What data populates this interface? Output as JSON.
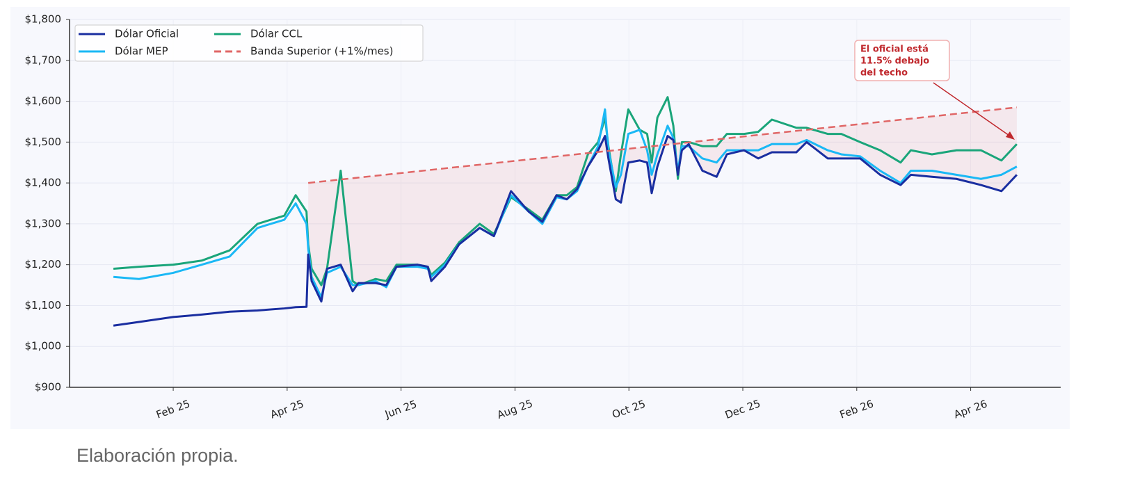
{
  "chart_data": {
    "type": "line",
    "x": [
      0.95,
      1.4,
      2.0,
      2.5,
      2.99,
      3.48,
      3.95,
      4.15,
      4.34,
      4.37,
      4.43,
      4.6,
      4.7,
      4.94,
      5.15,
      5.25,
      5.55,
      5.74,
      5.92,
      6.29,
      6.47,
      6.53,
      6.77,
      7.02,
      7.38,
      7.63,
      7.93,
      8.24,
      8.48,
      8.73,
      8.91,
      9.09,
      9.28,
      9.46,
      9.58,
      9.64,
      9.77,
      9.86,
      9.99,
      10.19,
      10.32,
      10.4,
      10.5,
      10.68,
      10.78,
      10.86,
      10.93,
      11.05,
      11.29,
      11.54,
      11.72,
      12.02,
      12.27,
      12.51,
      12.94,
      13.12,
      13.49,
      13.73,
      14.06,
      14.41,
      14.77,
      14.95,
      15.32,
      15.75,
      16.18,
      16.54,
      16.81
    ],
    "series": [
      {
        "name": "Dólar Oficial",
        "color": "#1a2ea0",
        "values": [
          1051,
          1060,
          1072,
          1078,
          1085,
          1088,
          1093,
          1096,
          1097,
          1225,
          1160,
          1110,
          1190,
          1200,
          1135,
          1155,
          1155,
          1150,
          1195,
          1200,
          1195,
          1160,
          1195,
          1250,
          1290,
          1270,
          1380,
          1330,
          1305,
          1370,
          1360,
          1385,
          1440,
          1480,
          1515,
          1460,
          1360,
          1352,
          1450,
          1455,
          1450,
          1375,
          1440,
          1515,
          1505,
          1420,
          1480,
          1495,
          1430,
          1415,
          1470,
          1480,
          1460,
          1475,
          1475,
          1500,
          1460,
          1460,
          1460,
          1420,
          1395,
          1420,
          1415,
          1410,
          1395,
          1380,
          1420
        ]
      },
      {
        "name": "Dólar MEP",
        "color": "#1ab8f5",
        "values": [
          1170,
          1165,
          1180,
          1200,
          1220,
          1290,
          1310,
          1350,
          1300,
          1240,
          1170,
          1120,
          1180,
          1195,
          1150,
          1150,
          1160,
          1145,
          1195,
          1195,
          1190,
          1170,
          1200,
          1250,
          1290,
          1270,
          1370,
          1330,
          1300,
          1365,
          1360,
          1380,
          1440,
          1490,
          1580,
          1480,
          1390,
          1420,
          1520,
          1530,
          1480,
          1420,
          1470,
          1540,
          1510,
          1430,
          1490,
          1490,
          1460,
          1450,
          1480,
          1480,
          1480,
          1495,
          1495,
          1505,
          1480,
          1470,
          1465,
          1430,
          1400,
          1430,
          1430,
          1420,
          1410,
          1420,
          1440
        ]
      },
      {
        "name": "Dólar CCL",
        "color": "#1aa57a",
        "values": [
          1190,
          1195,
          1200,
          1210,
          1235,
          1300,
          1320,
          1370,
          1330,
          1250,
          1190,
          1150,
          1190,
          1430,
          1160,
          1150,
          1165,
          1160,
          1200,
          1200,
          1195,
          1175,
          1205,
          1255,
          1300,
          1275,
          1365,
          1335,
          1310,
          1370,
          1370,
          1390,
          1470,
          1500,
          1560,
          1490,
          1380,
          1470,
          1580,
          1530,
          1520,
          1450,
          1560,
          1610,
          1540,
          1410,
          1500,
          1500,
          1490,
          1490,
          1520,
          1520,
          1525,
          1555,
          1535,
          1535,
          1520,
          1520,
          1500,
          1480,
          1450,
          1480,
          1470,
          1480,
          1480,
          1455,
          1495
        ]
      },
      {
        "name": "Banda Superior (+1%/mes)",
        "color": "#e06666",
        "dashed": true,
        "x": [
          4.37,
          16.81
        ],
        "values": [
          1400,
          1585
        ]
      }
    ],
    "xlim": [
      0.18,
      17.58
    ],
    "xticks": [
      {
        "value": 2,
        "label": "Feb 25"
      },
      {
        "value": 4,
        "label": "Apr 25"
      },
      {
        "value": 6,
        "label": "Jun 25"
      },
      {
        "value": 8,
        "label": "Aug 25"
      },
      {
        "value": 10,
        "label": "Oct 25"
      },
      {
        "value": 12,
        "label": "Dec 25"
      },
      {
        "value": 14,
        "label": "Feb 26"
      },
      {
        "value": 16,
        "label": "Apr 26"
      }
    ],
    "ylim": [
      900,
      1800
    ],
    "yticks": [
      {
        "value": 900,
        "label": "$900"
      },
      {
        "value": 1000,
        "label": "$1,000"
      },
      {
        "value": 1100,
        "label": "$1,100"
      },
      {
        "value": 1200,
        "label": "$1,200"
      },
      {
        "value": 1300,
        "label": "$1,300"
      },
      {
        "value": 1400,
        "label": "$1,400"
      },
      {
        "value": 1500,
        "label": "$1,500"
      },
      {
        "value": 1600,
        "label": "$1,600"
      },
      {
        "value": 1700,
        "label": "$1,700"
      },
      {
        "value": 1800,
        "label": "$1,800"
      }
    ],
    "grid": true,
    "legend": "upper left",
    "annotation": {
      "lines": [
        "El oficial está",
        "11.5% debajo",
        "del techo"
      ],
      "color": "#c0282d"
    }
  },
  "caption": "Elaboración propia."
}
